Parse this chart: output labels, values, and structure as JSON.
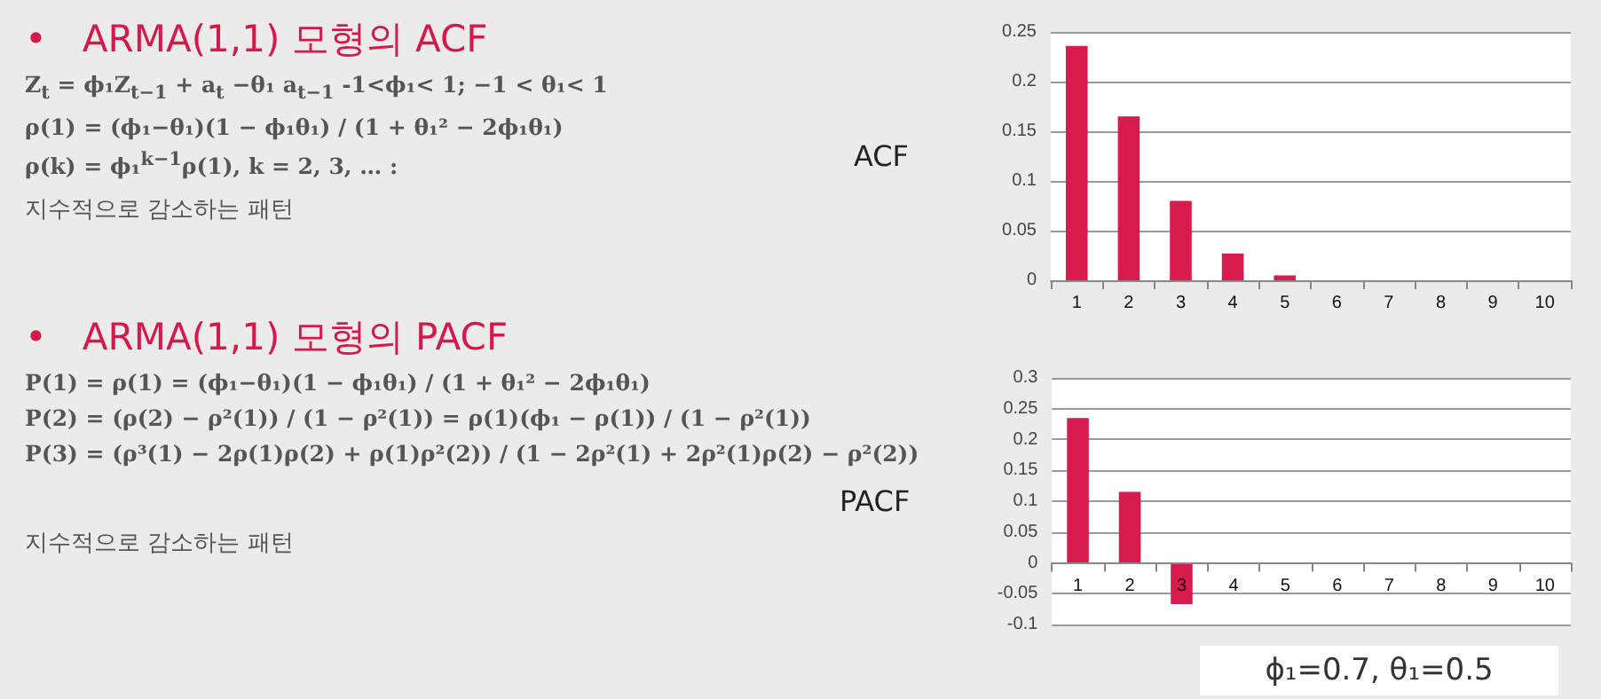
{
  "chart_data": [
    {
      "type": "other",
      "title": "•   ARMA(1,1) 모형의 ACF",
      "annotations": [
        "Z$_{t}$ = ϕ₁Z$_{t−1}$ + a$_{t}$ −θ₁ a$_{t−1}$   -1<ϕ₁< 1; −1 < θ₁< 1",
        "ρ(1) = (ϕ₁−θ₁)(1 − ϕ₁θ₁) / (1 + θ₁² − 2ϕ₁θ₁)",
        "ρ(k) = ϕ₁$^{k−1}$ρ(1), k = 2, 3, … :",
        "지수적으로 감소하는 패턴"
      ]
    },
    {
      "type": "bar",
      "ylabel": "ACF",
      "categories": [
        "1",
        "2",
        "3",
        "4",
        "5",
        "6",
        "7",
        "8",
        "9",
        "10"
      ],
      "values": [
        0.236,
        0.165,
        0.08,
        0.027,
        0.005,
        0,
        0,
        0,
        0,
        0
      ],
      "color": "#d81b4e",
      "ylim": [
        0,
        0.25
      ],
      "yticks": [
        0,
        0.05,
        0.1,
        0.15,
        0.2,
        0.25
      ],
      "grid": "y"
    },
    {
      "type": "other",
      "title": "•   ARMA(1,1) 모형의 PACF",
      "annotations": [
        "P(1) = ρ(1) = (ϕ₁−θ₁)(1 − ϕ₁θ₁) / (1 + θ₁² − 2ϕ₁θ₁)",
        "P(2) = (ρ(2) − ρ²(1)) / (1 − ρ²(1)) = ρ(1)(ϕ₁ − ρ(1)) / (1 − ρ²(1))",
        "P(3) = (ρ³(1) − 2ρ(1)ρ(2) + ρ(1)ρ²(2)) / (1 − 2ρ²(1) + 2ρ²(1)ρ(2) − ρ²(2))",
        "지수적으로 감소하는 패턴"
      ]
    },
    {
      "type": "bar",
      "ylabel": "PACF",
      "categories": [
        "1",
        "2",
        "3",
        "4",
        "5",
        "6",
        "7",
        "8",
        "9",
        "10"
      ],
      "values": [
        0.235,
        0.115,
        -0.067,
        0,
        0,
        0,
        0,
        0,
        0,
        0
      ],
      "color": "#d81b4e",
      "ylim": [
        -0.1,
        0.3
      ],
      "yticks": [
        -0.1,
        -0.05,
        0,
        0.05,
        0.1,
        0.15,
        0.2,
        0.25,
        0.3
      ],
      "grid": "y",
      "annotations": [
        "ϕ₁=0.7, θ₁=0.5"
      ]
    }
  ]
}
